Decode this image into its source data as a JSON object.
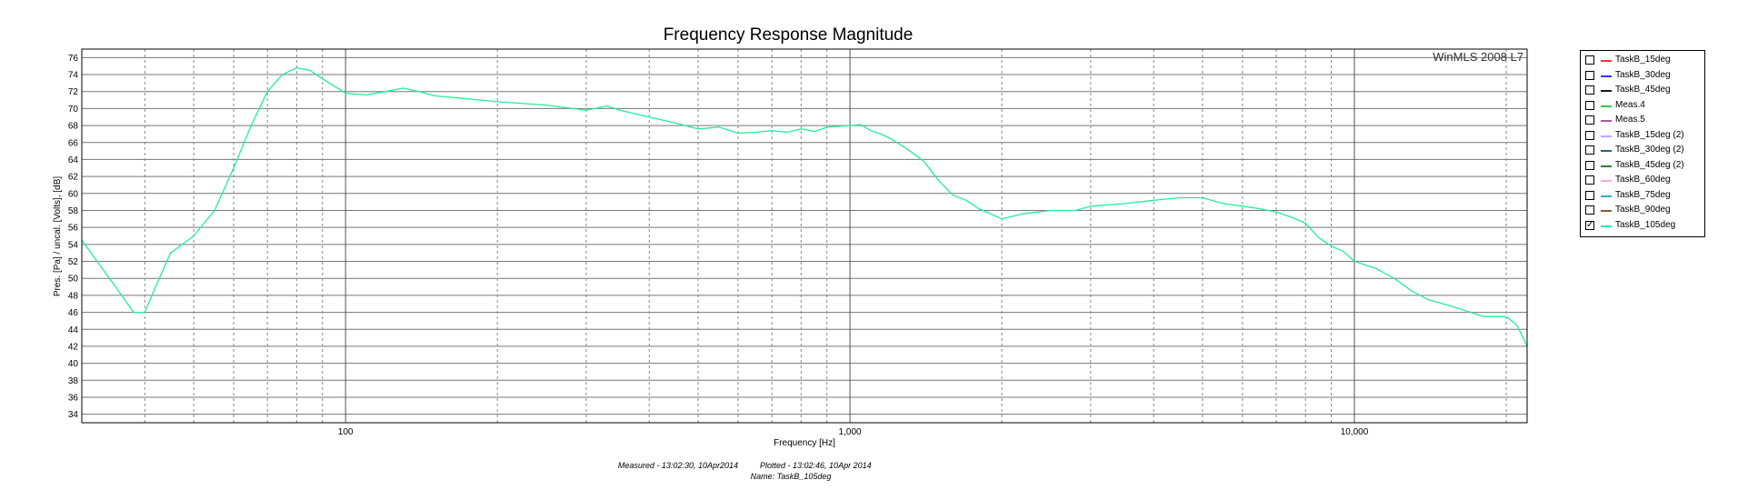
{
  "chart_data": {
    "type": "line",
    "title": "Frequency Response Magnitude",
    "watermark": "WinMLS 2008 L7",
    "xlabel": "Frequency [Hz]",
    "ylabel": "Pres. [Pa] / uncal. [Volts], [dB]",
    "x_scale": "log",
    "xlim": [
      30,
      22000
    ],
    "ylim": [
      33,
      77
    ],
    "x_ticks": [
      {
        "value": 100,
        "label": "100"
      },
      {
        "value": 1000,
        "label": "1,000"
      },
      {
        "value": 10000,
        "label": "10,000"
      }
    ],
    "y_ticks": [
      34,
      36,
      38,
      40,
      42,
      44,
      46,
      48,
      50,
      52,
      54,
      56,
      58,
      60,
      62,
      64,
      66,
      68,
      70,
      72,
      74,
      76
    ],
    "grid": true,
    "legend_placement": "right",
    "series": [
      {
        "name": "TaskB_15deg",
        "color": "#ff3333",
        "checked": false
      },
      {
        "name": "TaskB_30deg",
        "color": "#3333ff",
        "checked": false
      },
      {
        "name": "TaskB_45deg",
        "color": "#1a1a1a",
        "checked": false
      },
      {
        "name": "Meas.4",
        "color": "#33cc33",
        "checked": false
      },
      {
        "name": "Meas.5",
        "color": "#aa55aa",
        "checked": false
      },
      {
        "name": "TaskB_15deg (2)",
        "color": "#c0a0ff",
        "checked": false
      },
      {
        "name": "TaskB_30deg (2)",
        "color": "#2a6080",
        "checked": false
      },
      {
        "name": "TaskB_45deg (2)",
        "color": "#2f7f2f",
        "checked": false
      },
      {
        "name": "TaskB_60deg",
        "color": "#ffaacc",
        "checked": false
      },
      {
        "name": "TaskB_75deg",
        "color": "#33aacc",
        "checked": false
      },
      {
        "name": "TaskB_90deg",
        "color": "#8b5a2b",
        "checked": false
      },
      {
        "name": "TaskB_105deg",
        "color": "#22ee99",
        "checked": true,
        "x": [
          30,
          35,
          38,
          40,
          42,
          45,
          50,
          55,
          60,
          65,
          70,
          75,
          80,
          85,
          90,
          100,
          110,
          120,
          130,
          140,
          150,
          170,
          200,
          250,
          300,
          330,
          350,
          400,
          450,
          500,
          550,
          600,
          650,
          700,
          750,
          800,
          850,
          900,
          1000,
          1050,
          1100,
          1150,
          1200,
          1300,
          1400,
          1500,
          1600,
          1700,
          1800,
          1900,
          2000,
          2200,
          2500,
          2800,
          3000,
          3500,
          4000,
          4500,
          5000,
          5500,
          6000,
          6500,
          7000,
          7500,
          8000,
          8500,
          9000,
          9500,
          10000,
          11000,
          12000,
          13000,
          14000,
          15000,
          16000,
          17000,
          18000,
          19000,
          20000,
          21000,
          22000
        ],
        "y": [
          54.5,
          49,
          46,
          46,
          49,
          53,
          55,
          58,
          63,
          68,
          72,
          74,
          74.8,
          74.5,
          73.5,
          71.8,
          71.6,
          72,
          72.4,
          72,
          71.5,
          71.2,
          70.8,
          70.4,
          69.8,
          70.3,
          69.8,
          69,
          68.3,
          67.6,
          67.8,
          67.1,
          67.2,
          67.4,
          67.2,
          67.6,
          67.3,
          67.8,
          68,
          68.1,
          67.4,
          67,
          66.5,
          65.2,
          63.8,
          61.5,
          59.8,
          59.2,
          58.2,
          57.6,
          57,
          57.6,
          58,
          58,
          58.5,
          58.8,
          59.2,
          59.5,
          59.5,
          58.8,
          58.5,
          58.2,
          57.8,
          57.2,
          56.5,
          54.8,
          53.8,
          53.2,
          52,
          51.2,
          50,
          48.5,
          47.5,
          47,
          46.5,
          46,
          45.5,
          45.5,
          45.5,
          44.5,
          42
        ]
      }
    ]
  },
  "footer": {
    "measured": "Measured - 13:02:30, 10Apr2014",
    "plotted": "Plotted - 13:02:46, 10Apr 2014",
    "name": "Name: TaskB_105deg"
  }
}
